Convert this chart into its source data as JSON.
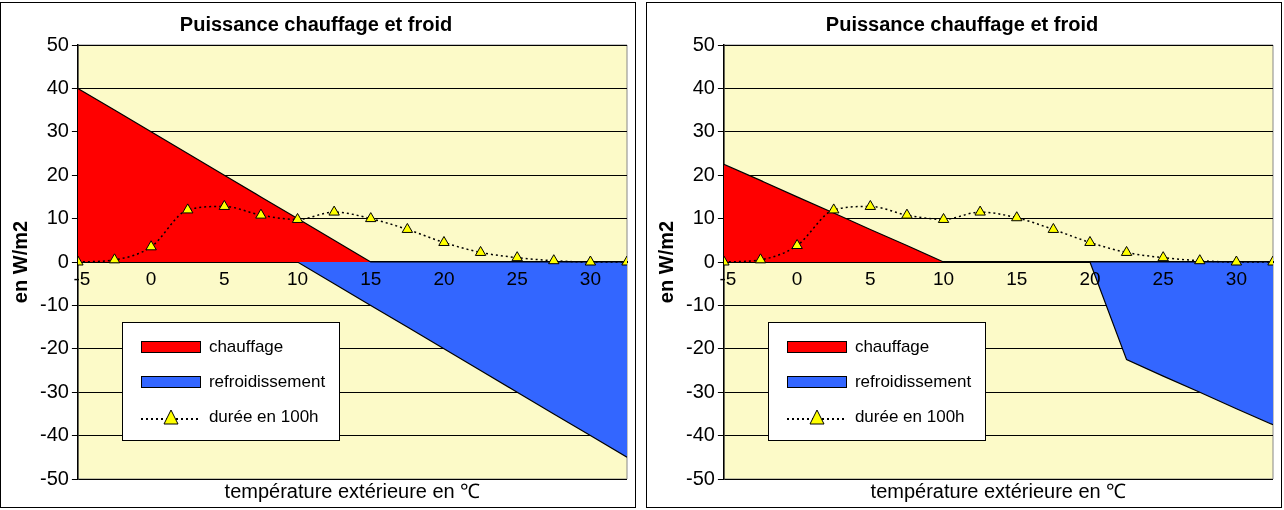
{
  "chart_data": [
    {
      "type": "area",
      "title": "Puissance chauffage et froid",
      "xlabel": "température extérieure en ℃",
      "ylabel": "en W/m2",
      "x": [
        -5,
        -2.5,
        0,
        2.5,
        5,
        7.5,
        10,
        12.5,
        15,
        17.5,
        20,
        22.5,
        25,
        27.5,
        30,
        32.5
      ],
      "series": [
        {
          "name": "chauffage",
          "type": "area",
          "color": "#ff0000",
          "values": [
            40,
            35,
            30,
            25,
            20,
            15,
            10,
            5,
            0,
            0,
            0,
            0,
            0,
            0,
            0,
            0
          ]
        },
        {
          "name": "refroidissement",
          "type": "area",
          "color": "#3366ff",
          "values": [
            0,
            0,
            0,
            0,
            0,
            0,
            0,
            -5,
            -10,
            -15,
            -20,
            -25,
            -30,
            -35,
            -40,
            -45
          ]
        },
        {
          "name": "durée en 100h",
          "type": "line",
          "color": "#ffff00",
          "marker": "triangle",
          "line_style": "dotted",
          "values": [
            0,
            0.5,
            3.5,
            12,
            12.8,
            10.8,
            9.8,
            11.5,
            10,
            7.5,
            4.5,
            2.2,
            1,
            0.3,
            0,
            0
          ]
        }
      ],
      "xlim": [
        -5,
        32.5
      ],
      "xticks": [
        -5,
        0,
        5,
        10,
        15,
        20,
        25,
        30
      ],
      "ylim": [
        -50,
        50
      ],
      "yticks": [
        -50,
        -40,
        -30,
        -20,
        -10,
        0,
        10,
        20,
        30,
        40,
        50
      ],
      "grid": "y",
      "legend": "bottom left"
    },
    {
      "type": "area",
      "title": "Puissance chauffage et froid",
      "xlabel": "température extérieure en ℃",
      "ylabel": "en W/m2",
      "x": [
        -5,
        -2.5,
        0,
        2.5,
        5,
        7.5,
        10,
        12.5,
        15,
        17.5,
        20,
        22.5,
        25,
        27.5,
        30,
        32.5
      ],
      "series": [
        {
          "name": "chauffage",
          "type": "area",
          "color": "#ff0000",
          "values": [
            22.5,
            18.8,
            15,
            11.3,
            7.5,
            3.8,
            0,
            0,
            0,
            0,
            0,
            0,
            0,
            0,
            0,
            0
          ]
        },
        {
          "name": "refroidissement",
          "type": "area",
          "color": "#3366ff",
          "values": [
            0,
            0,
            0,
            0,
            0,
            0,
            0,
            0,
            0,
            0,
            0,
            -22.5,
            -26.3,
            -30,
            -33.8,
            -37.5
          ]
        },
        {
          "name": "durée en 100h",
          "type": "line",
          "color": "#ffff00",
          "marker": "triangle",
          "line_style": "dotted",
          "values": [
            0,
            0.5,
            3.8,
            12,
            12.8,
            10.8,
            9.8,
            11.5,
            10.2,
            7.5,
            4.5,
            2.2,
            1,
            0.3,
            0,
            0
          ]
        }
      ],
      "xlim": [
        -5,
        32.5
      ],
      "xticks": [
        -5,
        0,
        5,
        10,
        15,
        20,
        25,
        30
      ],
      "ylim": [
        -50,
        50
      ],
      "yticks": [
        -50,
        -40,
        -30,
        -20,
        -10,
        0,
        10,
        20,
        30,
        40,
        50
      ],
      "grid": "y",
      "legend": "bottom left"
    }
  ]
}
